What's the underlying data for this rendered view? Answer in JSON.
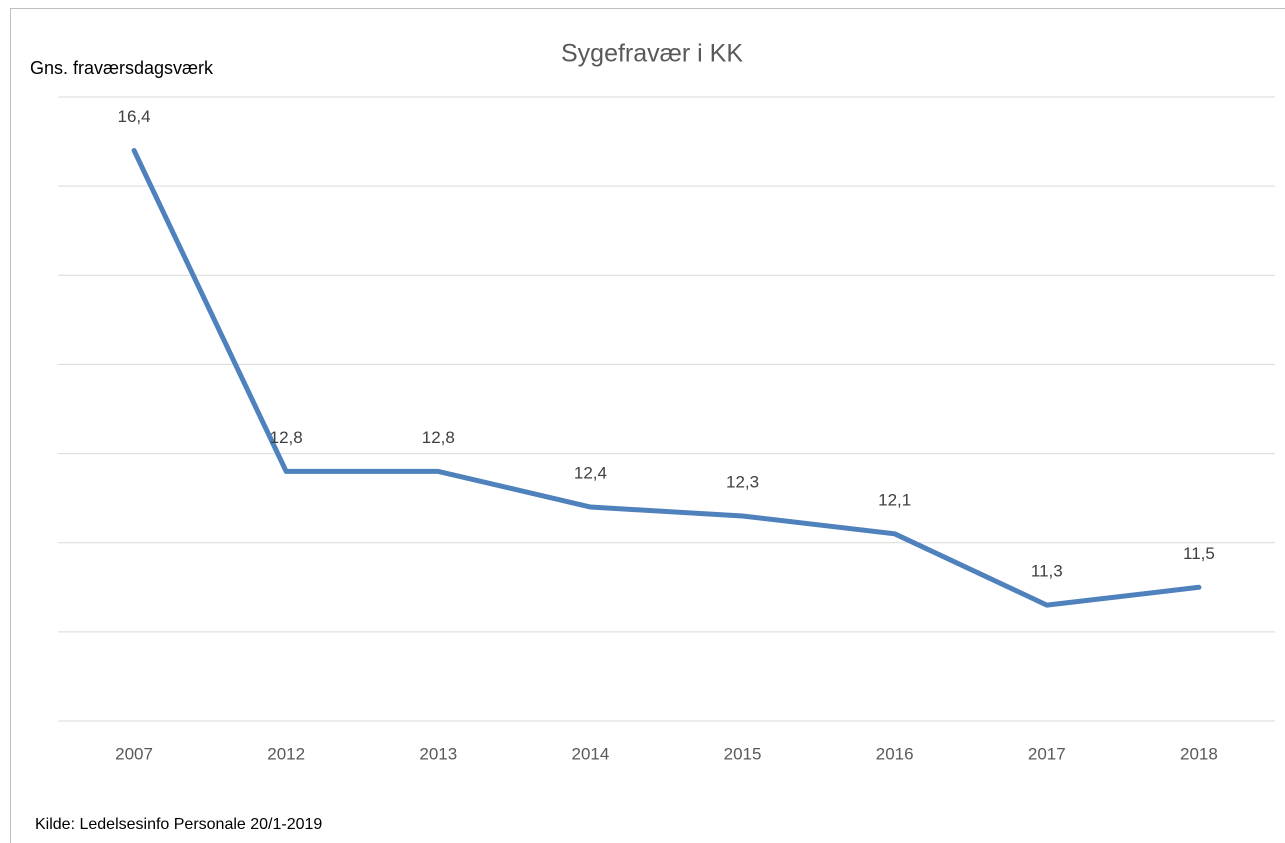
{
  "chart_data": {
    "type": "line",
    "title": "Sygefravær i KK",
    "y_label": "Gns. fraværsdagsværk",
    "source": "Kilde: Ledelsesinfo Personale 20/1-2019",
    "categories": [
      "2007",
      "2012",
      "2013",
      "2014",
      "2015",
      "2016",
      "2017",
      "2018"
    ],
    "series": [
      {
        "name": "Sygefravær",
        "color": "#4f81bd",
        "values": [
          16.4,
          12.8,
          12.8,
          12.4,
          12.3,
          12.1,
          11.3,
          11.5
        ],
        "value_labels": [
          "16,4",
          "12,8",
          "12,8",
          "12,4",
          "12,3",
          "12,1",
          "11,3",
          "11,5"
        ]
      }
    ],
    "ylim": [
      10,
      17
    ],
    "yticks": [
      10,
      11,
      12,
      13,
      14,
      15,
      16,
      17
    ],
    "grid": true
  }
}
